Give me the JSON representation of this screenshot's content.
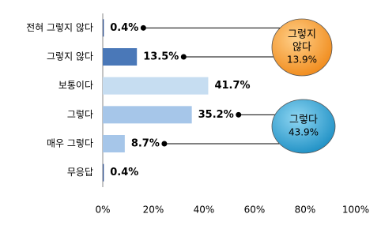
{
  "chart_data": {
    "type": "hbar",
    "categories": [
      "전혀 그렇지 않다",
      "그렇지 않다",
      "보통이다",
      "그렇다",
      "매우 그렇다",
      "무응답"
    ],
    "values": [
      0.4,
      13.5,
      41.7,
      35.2,
      8.7,
      0.4
    ],
    "value_labels": [
      "0.4%",
      "13.5%",
      "41.7%",
      "35.2%",
      "8.7%",
      "0.4%"
    ],
    "colors": [
      "#2f4f8f",
      "#4a78b8",
      "#c6ddf1",
      "#a6c6e9",
      "#a6c6e9",
      "#2f4f8f"
    ],
    "xlim": [
      0,
      100
    ],
    "xticks": [
      {
        "value": 0,
        "label": "0%"
      },
      {
        "value": 20,
        "label": "20%"
      },
      {
        "value": 40,
        "label": "40%"
      },
      {
        "value": 60,
        "label": "60%"
      },
      {
        "value": 80,
        "label": "80%"
      },
      {
        "value": 100,
        "label": "100%"
      }
    ],
    "annotations": [
      {
        "lines": [
          "그렇지",
          "않다"
        ],
        "label": "13.9%",
        "color": "#f39a2a"
      },
      {
        "lines": [
          "그렇다"
        ],
        "label": "43.9%",
        "color": "#2a9fd0"
      }
    ]
  }
}
